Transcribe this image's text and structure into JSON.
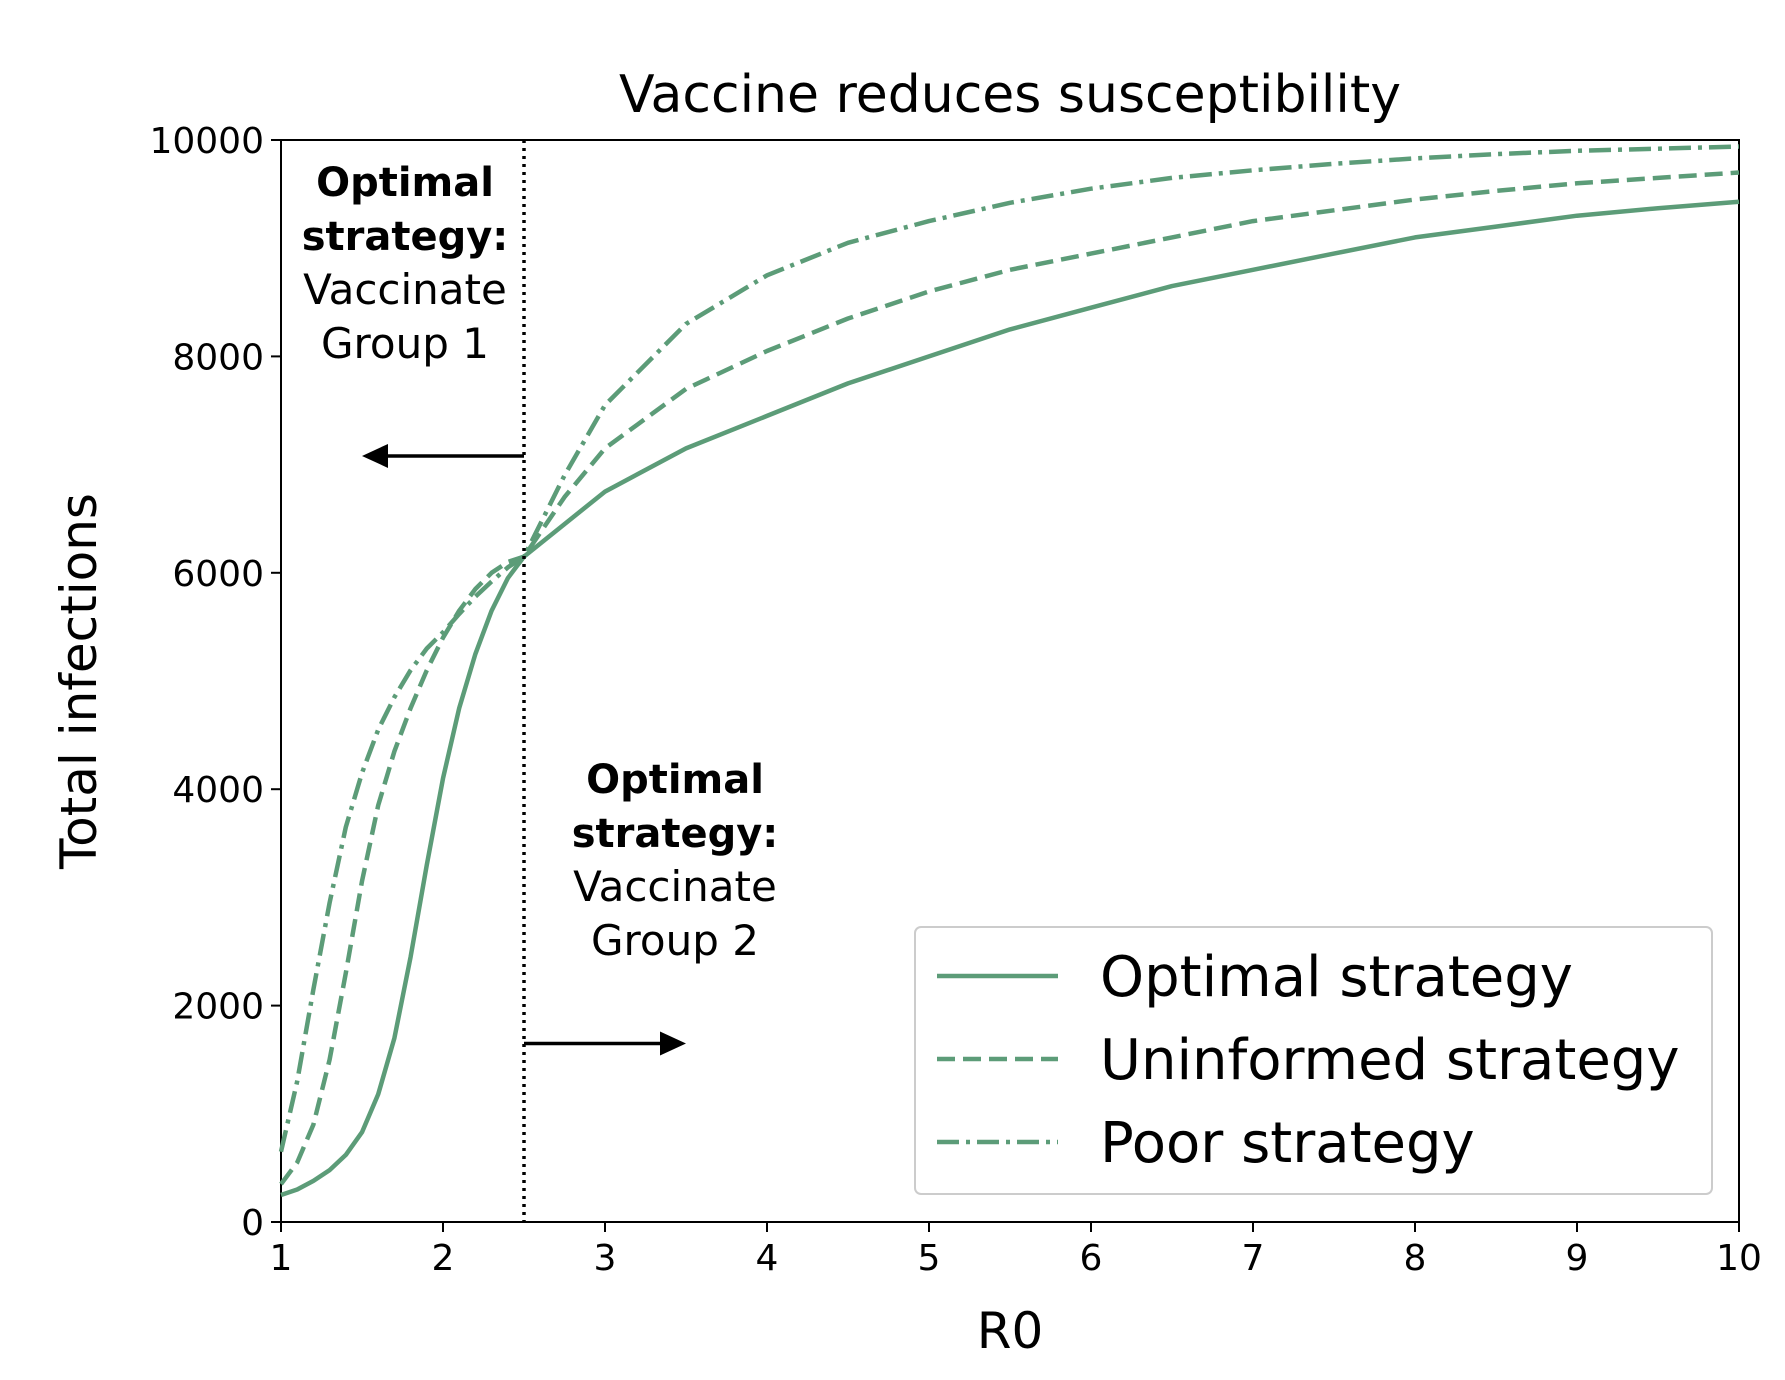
{
  "chart_data": {
    "type": "line",
    "title": "Vaccine reduces susceptibility",
    "xlabel": "R0",
    "ylabel": "Total infections",
    "xlim": [
      1,
      10
    ],
    "ylim": [
      0,
      10000
    ],
    "xticks": [
      1,
      2,
      3,
      4,
      5,
      6,
      7,
      8,
      9,
      10
    ],
    "yticks": [
      0,
      2000,
      4000,
      6000,
      8000,
      10000
    ],
    "xtick_labels": [
      "1",
      "2",
      "3",
      "4",
      "5",
      "6",
      "7",
      "8",
      "9",
      "10"
    ],
    "ytick_labels": [
      "0",
      "2000",
      "4000",
      "6000",
      "8000",
      "10000"
    ],
    "grid": false,
    "legend_position": "lower-right",
    "line_color": "#5c9c78",
    "series": [
      {
        "name": "Optimal strategy",
        "line_style": "solid",
        "x": [
          1.0,
          1.1,
          1.2,
          1.3,
          1.4,
          1.5,
          1.6,
          1.7,
          1.8,
          1.9,
          2.0,
          2.1,
          2.2,
          2.3,
          2.4,
          2.5,
          2.75,
          3.0,
          3.5,
          4.0,
          4.5,
          5.0,
          5.5,
          6.0,
          6.5,
          7.0,
          7.5,
          8.0,
          8.5,
          9.0,
          9.5,
          10.0
        ],
        "y": [
          250,
          300,
          380,
          480,
          620,
          830,
          1180,
          1700,
          2450,
          3300,
          4100,
          4750,
          5250,
          5650,
          5950,
          6150,
          6450,
          6750,
          7150,
          7450,
          7750,
          8000,
          8250,
          8450,
          8650,
          8800,
          8950,
          9100,
          9200,
          9300,
          9370,
          9430
        ]
      },
      {
        "name": "Uninformed strategy",
        "line_style": "dashed",
        "x": [
          1.0,
          1.1,
          1.2,
          1.3,
          1.4,
          1.5,
          1.6,
          1.7,
          1.8,
          1.9,
          2.0,
          2.1,
          2.2,
          2.3,
          2.4,
          2.5,
          2.75,
          3.0,
          3.5,
          4.0,
          4.5,
          5.0,
          5.5,
          6.0,
          6.5,
          7.0,
          7.5,
          8.0,
          8.5,
          9.0,
          9.5,
          10.0
        ],
        "y": [
          350,
          550,
          900,
          1500,
          2300,
          3150,
          3850,
          4350,
          4750,
          5100,
          5400,
          5650,
          5850,
          6000,
          6100,
          6150,
          6700,
          7150,
          7700,
          8050,
          8350,
          8600,
          8800,
          8950,
          9100,
          9250,
          9350,
          9450,
          9530,
          9600,
          9650,
          9700
        ]
      },
      {
        "name": "Poor strategy",
        "line_style": "dashdot",
        "x": [
          1.0,
          1.1,
          1.2,
          1.3,
          1.4,
          1.5,
          1.6,
          1.7,
          1.8,
          1.9,
          2.0,
          2.1,
          2.2,
          2.3,
          2.4,
          2.5,
          2.75,
          3.0,
          3.5,
          4.0,
          4.5,
          5.0,
          5.5,
          6.0,
          6.5,
          7.0,
          7.5,
          8.0,
          8.5,
          9.0,
          9.5,
          10.0
        ],
        "y": [
          650,
          1300,
          2150,
          2950,
          3650,
          4150,
          4550,
          4850,
          5100,
          5300,
          5450,
          5620,
          5780,
          5920,
          6050,
          6150,
          6900,
          7550,
          8300,
          8750,
          9050,
          9250,
          9420,
          9550,
          9650,
          9720,
          9780,
          9830,
          9870,
          9900,
          9920,
          9940
        ]
      }
    ],
    "vertical_line": {
      "x": 2.5,
      "style": "dotted",
      "color": "#000000"
    },
    "annotations": [
      {
        "bold_lines": [
          "Optimal",
          "strategy:"
        ],
        "lines": [
          "Vaccinate",
          "Group 1"
        ],
        "arrow": {
          "from_x": 2.5,
          "to_x": 1.5,
          "y": 7080
        }
      },
      {
        "bold_lines": [
          "Optimal",
          "strategy:"
        ],
        "lines": [
          "Vaccinate",
          "Group 2"
        ],
        "arrow": {
          "from_x": 2.5,
          "to_x": 3.5,
          "y": 1650
        }
      }
    ]
  }
}
